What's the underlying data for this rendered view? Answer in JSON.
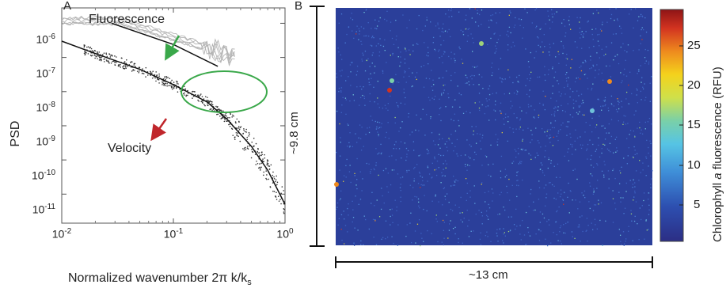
{
  "panel_a": {
    "letter": "A",
    "ylabel": "PSD",
    "xlabel_text": "Normalized wavenumber 2π k/k",
    "xlabel_sub": "s",
    "fluorescence_label": "Fluorescence",
    "velocity_label": "Velocity",
    "arrow_green": "#3aa84a",
    "arrow_red": "#c0262b",
    "circle_color": "#3aa84a"
  },
  "panel_b": {
    "letter": "B",
    "height_label": "~9.8 cm",
    "width_label": "~13 cm",
    "colorbar_label_pre": "Chlorophyll ",
    "colorbar_label_italic": "a",
    "colorbar_label_post": " fluorescence (RFU)",
    "colorbar_ticks": [
      "25",
      "20",
      "15",
      "10",
      "5"
    ],
    "background_color": "#2b3f9a"
  },
  "chart_data": {
    "type": "line",
    "log_x": true,
    "log_y": true,
    "xlim": [
      0.01,
      1
    ],
    "ylim": [
      1e-12,
      3e-06
    ],
    "x_ticks": [
      {
        "mant": "10",
        "exp": "-2",
        "value": 0.01
      },
      {
        "mant": "10",
        "exp": "-1",
        "value": 0.1
      },
      {
        "mant": "10",
        "exp": "0",
        "value": 1
      }
    ],
    "y_ticks": [
      {
        "mant": "10",
        "exp": "-6",
        "value": 1e-06
      },
      {
        "mant": "10",
        "exp": "-7",
        "value": 1e-07
      },
      {
        "mant": "10",
        "exp": "-8",
        "value": 1e-08
      },
      {
        "mant": "10",
        "exp": "-9",
        "value": 1e-09
      },
      {
        "mant": "10",
        "exp": "-10",
        "value": 1e-10
      },
      {
        "mant": "10",
        "exp": "-11",
        "value": 1e-11
      }
    ],
    "series": [
      {
        "x": [
          0.01,
          0.02,
          0.05,
          0.1,
          0.2,
          0.3,
          0.5,
          0.7,
          1.0
        ],
        "y": [
          3e-07,
          1.3e-07,
          4.5e-08,
          1.6e-08,
          5e-09,
          1.6e-09,
          2.5e-10,
          5e-11,
          5e-12
        ]
      },
      {
        "x": [
          0.028,
          0.1,
          0.25
        ],
        "y": [
          1e-06,
          2.4e-07,
          5.5e-08
        ]
      }
    ]
  }
}
